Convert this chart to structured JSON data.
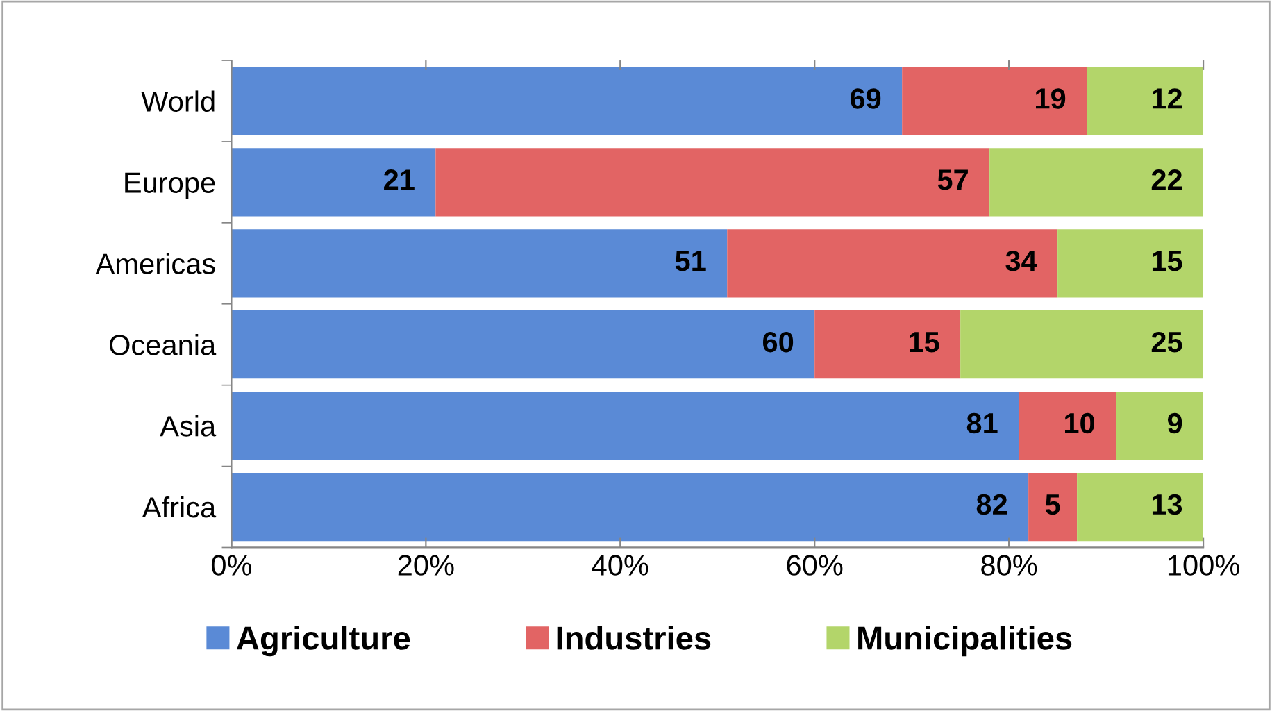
{
  "chart_data": {
    "type": "bar",
    "orientation": "horizontal",
    "stacked": true,
    "categories": [
      "World",
      "Europe",
      "Americas",
      "Oceania",
      "Asia",
      "Africa"
    ],
    "series": [
      {
        "name": "Agriculture",
        "color": "#5a8ad6",
        "values": [
          69,
          21,
          51,
          60,
          81,
          82
        ]
      },
      {
        "name": "Industries",
        "color": "#e26464",
        "values": [
          19,
          57,
          34,
          15,
          10,
          5
        ]
      },
      {
        "name": "Municipalities",
        "color": "#b3d56a",
        "values": [
          12,
          22,
          15,
          25,
          9,
          13
        ]
      }
    ],
    "xlim": [
      0,
      100
    ],
    "xticks": [
      {
        "value": 0,
        "label": "0%"
      },
      {
        "value": 20,
        "label": "20%"
      },
      {
        "value": 40,
        "label": "40%"
      },
      {
        "value": 60,
        "label": "60%"
      },
      {
        "value": 80,
        "label": "80%"
      },
      {
        "value": 100,
        "label": "100%"
      }
    ],
    "data_labels": true,
    "legend": "bottom",
    "grid": false
  }
}
